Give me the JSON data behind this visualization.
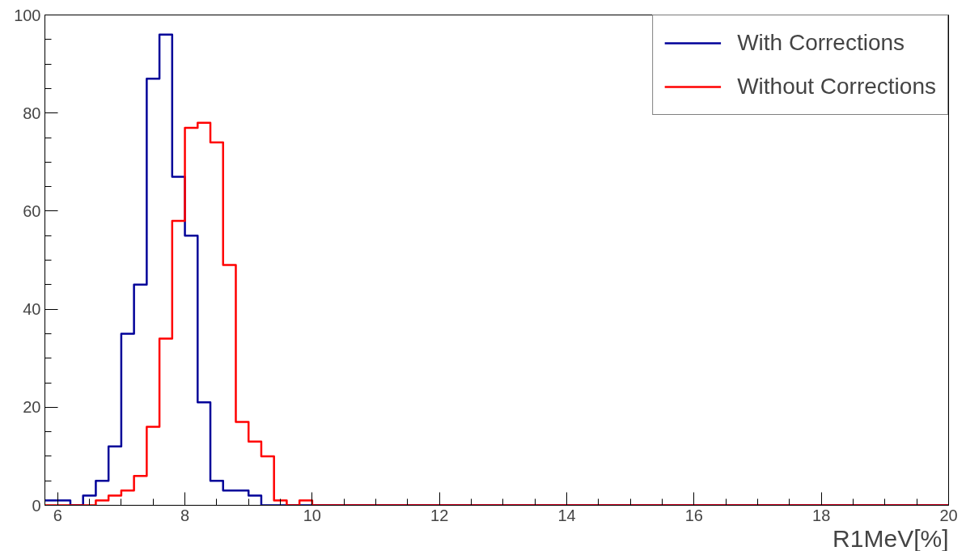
{
  "chart_data": {
    "type": "histogram",
    "xlabel": "R1MeV[%]",
    "bins": [
      5.8,
      6.0,
      6.2,
      6.4,
      6.6,
      6.8,
      7.0,
      7.2,
      7.4,
      7.6,
      7.8,
      8.0,
      8.2,
      8.4,
      8.6,
      8.8,
      9.0,
      9.2,
      9.4,
      9.6,
      9.8,
      10.0,
      10.2,
      10.4,
      10.6,
      10.8,
      11.0,
      11.2,
      11.4,
      11.6,
      11.8,
      12.0,
      12.2,
      12.4,
      12.6,
      12.8,
      13.0,
      13.2,
      13.4,
      13.6,
      13.8,
      14.0,
      14.2,
      14.4,
      14.6,
      14.8,
      15.0,
      15.2,
      15.4,
      15.6,
      15.8,
      16.0,
      16.2,
      16.4,
      16.6,
      16.8,
      17.0,
      17.2,
      17.4,
      17.6,
      17.8,
      18.0,
      18.2,
      18.4,
      18.6,
      18.8,
      19.0,
      19.2,
      19.4,
      19.6,
      19.8,
      20.0
    ],
    "series": [
      {
        "name": "With Corrections",
        "color": "#000099",
        "values": [
          1,
          1,
          0,
          2,
          5,
          12,
          35,
          45,
          87,
          96,
          67,
          55,
          21,
          5,
          3,
          3,
          2,
          0,
          0,
          0,
          0,
          0,
          0,
          0,
          0,
          0,
          0,
          0,
          0,
          0,
          0,
          0,
          0,
          0,
          0,
          0,
          0,
          0,
          0,
          0,
          0,
          0,
          0,
          0,
          0,
          0,
          0,
          0,
          0,
          0,
          0,
          0,
          0,
          0,
          0,
          0,
          0,
          0,
          0,
          0,
          0,
          0,
          0,
          0,
          0,
          0,
          0,
          0,
          0,
          0,
          0
        ]
      },
      {
        "name": "Without Corrections",
        "color": "#ff0000",
        "values": [
          0,
          0,
          0,
          0,
          1,
          2,
          3,
          6,
          16,
          34,
          58,
          77,
          78,
          74,
          49,
          17,
          13,
          10,
          1,
          0,
          1,
          0,
          0,
          0,
          0,
          0,
          0,
          0,
          0,
          0,
          0,
          0,
          0,
          0,
          0,
          0,
          0,
          0,
          0,
          0,
          0,
          0,
          0,
          0,
          0,
          0,
          0,
          0,
          0,
          0,
          0,
          0,
          0,
          0,
          0,
          0,
          0,
          0,
          0,
          0,
          0,
          0,
          0,
          0,
          0,
          0,
          0,
          0,
          0,
          0,
          0
        ]
      }
    ],
    "xlim": [
      5.8,
      20
    ],
    "ylim": [
      0,
      100
    ],
    "xticks": [
      6,
      8,
      10,
      12,
      14,
      16,
      18,
      20
    ],
    "yticks": [
      0,
      20,
      40,
      60,
      80,
      100
    ],
    "grid": false,
    "legend": "top right"
  }
}
